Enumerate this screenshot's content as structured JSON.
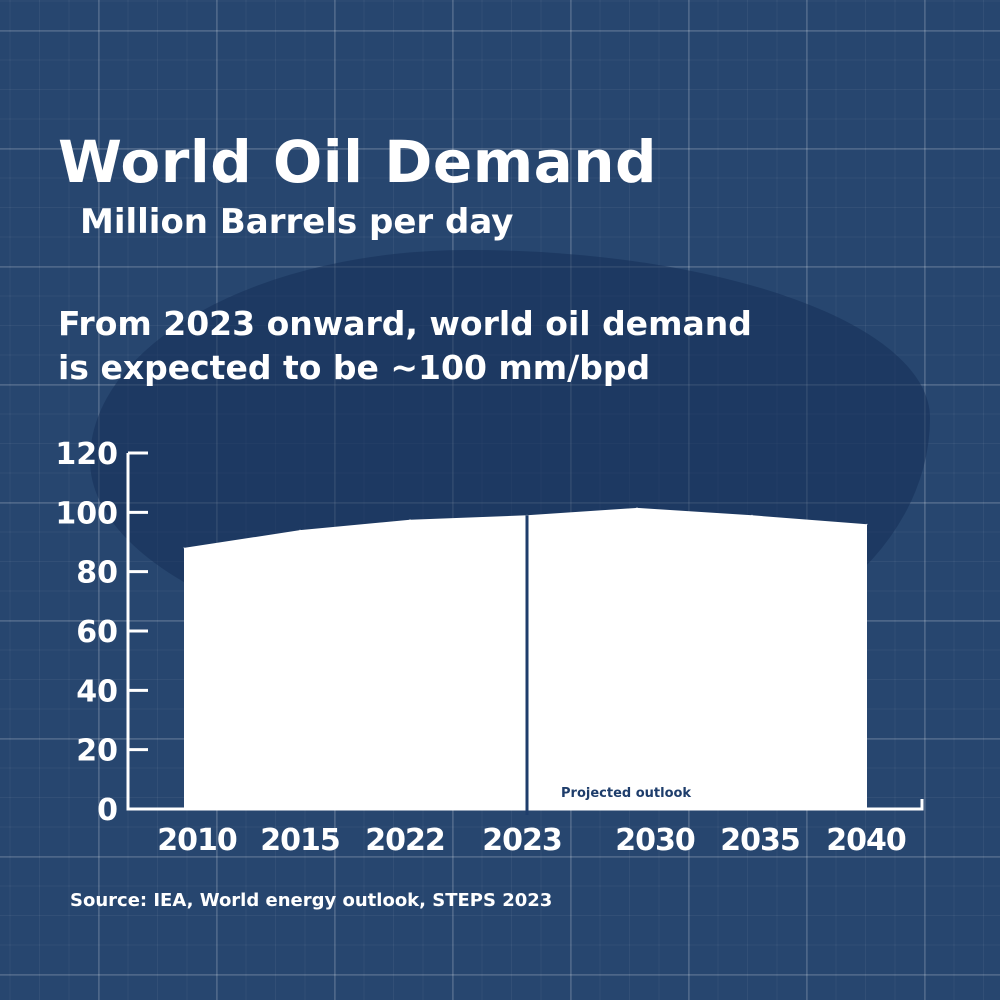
{
  "title": "World Oil Demand",
  "subtitle": "Million Barrels per day",
  "headline_lines": [
    "From 2023 onward, world oil demand",
    "is expected to be ~100 mm/bpd"
  ],
  "source": "Source: IEA, World energy outlook, STEPS 2023",
  "colors": {
    "background": "#27466f",
    "area": "#ffffff",
    "divider": "#1e3d6b",
    "annotation": "#1e3d6b"
  },
  "chart_data": {
    "type": "area",
    "categories": [
      "2010",
      "2015",
      "2022",
      "2023",
      "2030",
      "2035",
      "2040"
    ],
    "values": [
      88,
      94,
      97.5,
      99,
      101.5,
      99,
      96
    ],
    "ylim": [
      0,
      120
    ],
    "yticks": [
      0,
      20,
      40,
      60,
      80,
      100,
      120
    ],
    "divider_at": "2023",
    "annotation": "Projected outlook",
    "grid": false
  }
}
